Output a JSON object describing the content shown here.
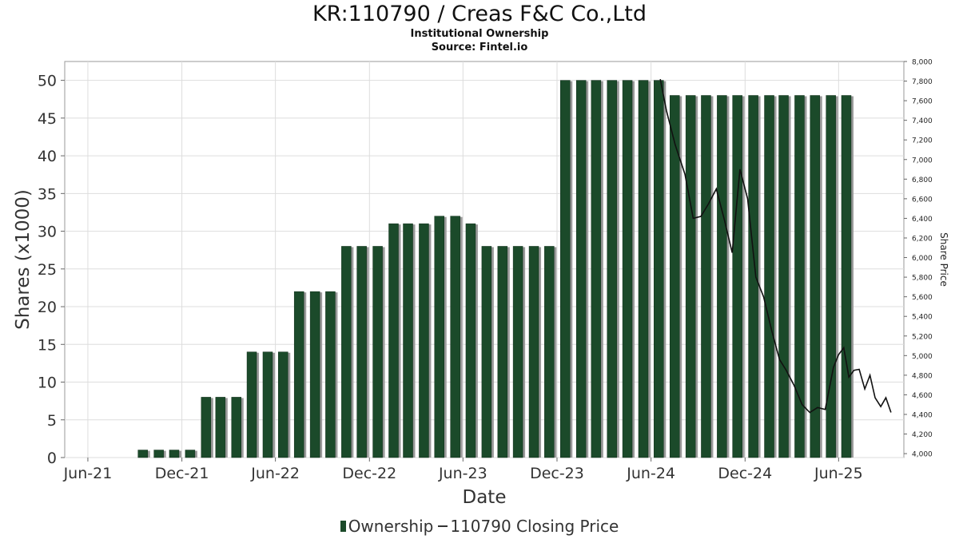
{
  "title": "KR:110790 / Creas F&C Co.,Ltd",
  "subtitle1": "Institutional Ownership",
  "subtitle2": "Source: Fintel.io",
  "legend": {
    "ownership_label": "Ownership",
    "price_label": "110790 Closing Price"
  },
  "colors": {
    "bar": "#1b4a2a",
    "bar_shadow": "#9a9a9a",
    "price_line": "#111111",
    "grid": "#dddddd"
  },
  "chart_data": {
    "type": "bar",
    "title": "KR:110790 / Creas F&C Co.,Ltd",
    "xlabel": "Date",
    "ylabel": "Shares (x1000)",
    "y2label": "Share Price",
    "ylim": [
      0,
      52.5
    ],
    "y2lim": [
      3960,
      8000
    ],
    "yticks": [
      0,
      5,
      10,
      15,
      20,
      25,
      30,
      35,
      40,
      45,
      50
    ],
    "y2ticks": [
      4000,
      4200,
      4400,
      4600,
      4800,
      5000,
      5200,
      5400,
      5600,
      5800,
      6000,
      6200,
      6400,
      6600,
      6800,
      7000,
      7200,
      7400,
      7600,
      7800,
      8000
    ],
    "y2ticklabels": [
      "4,000",
      "4,200",
      "4,400",
      "4,600",
      "4,800",
      "5,000",
      "5,200",
      "5,400",
      "5,600",
      "5,800",
      "6,000",
      "6,200",
      "6,400",
      "6,600",
      "6,800",
      "7,000",
      "7,200",
      "7,400",
      "7,600",
      "7,800",
      "8,000"
    ],
    "xlim": [
      "2021-05-01",
      "2025-10-20"
    ],
    "xticks": [
      {
        "date": "2021-06-15",
        "label": "Jun-21"
      },
      {
        "date": "2021-12-15",
        "label": "Dec-21"
      },
      {
        "date": "2022-06-15",
        "label": "Jun-22"
      },
      {
        "date": "2022-12-15",
        "label": "Dec-22"
      },
      {
        "date": "2023-06-15",
        "label": "Jun-23"
      },
      {
        "date": "2023-12-15",
        "label": "Dec-23"
      },
      {
        "date": "2024-06-15",
        "label": "Jun-24"
      },
      {
        "date": "2024-12-15",
        "label": "Dec-24"
      },
      {
        "date": "2025-06-15",
        "label": "Jun-25"
      }
    ],
    "grid": true,
    "legend_position": "bottom",
    "series": [
      {
        "name": "Ownership",
        "type": "bar",
        "x": [
          "2021-09-30",
          "2021-10-31",
          "2021-11-30",
          "2021-12-31",
          "2022-01-31",
          "2022-02-28",
          "2022-03-31",
          "2022-04-30",
          "2022-05-31",
          "2022-06-30",
          "2022-07-31",
          "2022-08-31",
          "2022-09-30",
          "2022-10-31",
          "2022-11-30",
          "2022-12-31",
          "2023-01-31",
          "2023-02-28",
          "2023-03-31",
          "2023-04-30",
          "2023-05-31",
          "2023-06-30",
          "2023-07-31",
          "2023-08-31",
          "2023-09-30",
          "2023-10-31",
          "2023-11-30",
          "2023-12-31",
          "2024-01-31",
          "2024-02-29",
          "2024-03-31",
          "2024-04-30",
          "2024-05-31",
          "2024-06-30",
          "2024-07-31",
          "2024-08-31",
          "2024-09-30",
          "2024-10-31",
          "2024-11-30",
          "2024-12-31",
          "2025-01-31",
          "2025-02-28",
          "2025-03-31",
          "2025-04-30",
          "2025-05-31",
          "2025-06-30"
        ],
        "values": [
          1,
          1,
          1,
          1,
          8,
          8,
          8,
          14,
          14,
          14,
          22,
          22,
          22,
          28,
          28,
          28,
          31,
          31,
          31,
          32,
          32,
          31,
          28,
          28,
          28,
          28,
          28,
          50,
          50,
          50,
          50,
          50,
          50,
          50,
          48,
          48,
          48,
          48,
          48,
          48,
          48,
          48,
          48,
          48,
          48,
          48
        ]
      },
      {
        "name": "110790 Closing Price",
        "type": "line",
        "axis": "right",
        "x": [
          "2024-07-03",
          "2024-07-15",
          "2024-08-01",
          "2024-08-20",
          "2024-09-05",
          "2024-09-20",
          "2024-10-05",
          "2024-10-20",
          "2024-11-05",
          "2024-11-20",
          "2024-12-05",
          "2024-12-20",
          "2025-01-05",
          "2025-01-20",
          "2025-02-05",
          "2025-02-20",
          "2025-03-05",
          "2025-03-20",
          "2025-04-05",
          "2025-04-20",
          "2025-05-05",
          "2025-05-20",
          "2025-06-05",
          "2025-06-15",
          "2025-06-25",
          "2025-07-05",
          "2025-07-15",
          "2025-07-25",
          "2025-08-05",
          "2025-08-15",
          "2025-08-25",
          "2025-09-05",
          "2025-09-15",
          "2025-09-25"
        ],
        "values": [
          7820,
          7500,
          7150,
          6850,
          6400,
          6420,
          6550,
          6700,
          6380,
          6050,
          6900,
          6600,
          5800,
          5600,
          5250,
          4960,
          4850,
          4700,
          4500,
          4420,
          4470,
          4450,
          4880,
          5010,
          5080,
          4780,
          4850,
          4860,
          4660,
          4800,
          4570,
          4480,
          4570,
          4420
        ]
      }
    ]
  }
}
